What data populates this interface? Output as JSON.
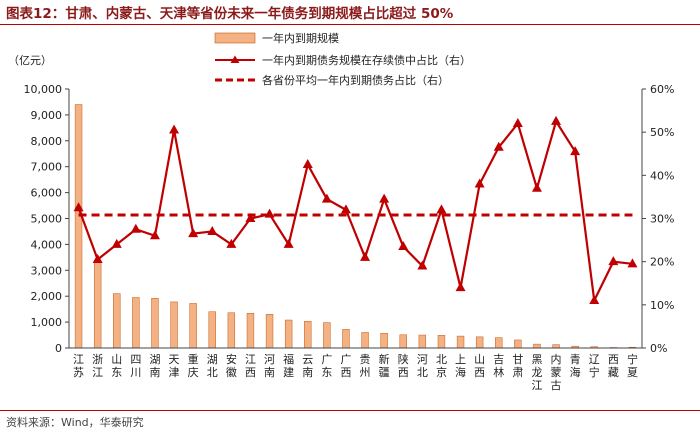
{
  "figure": {
    "title": "图表12：甘肃、内蒙古、天津等省份未来一年债务到期规模占比超过 50%",
    "source": "资料来源：Wind，华泰研究"
  },
  "colors": {
    "bar": "#f4b183",
    "bar_edge": "#c55a11",
    "line": "#c00000",
    "title": "#8b1a1a",
    "rule": "#c00000"
  },
  "chart_data": {
    "type": "bar",
    "categories": [
      "江苏",
      "浙江",
      "山东",
      "四川",
      "湖南",
      "天津",
      "重庆",
      "湖北",
      "安徽",
      "江西",
      "河南",
      "福建",
      "云南",
      "广东",
      "广西",
      "贵州",
      "新疆",
      "陕西",
      "河北",
      "北京",
      "上海",
      "山西",
      "吉林",
      "甘肃",
      "黑龙江",
      "内蒙古",
      "青海",
      "辽宁",
      "西藏",
      "宁夏"
    ],
    "series": [
      {
        "name": "一年内到期规模",
        "type": "bar",
        "axis": "left",
        "values": [
          9400,
          3300,
          2100,
          1950,
          1920,
          1780,
          1720,
          1400,
          1360,
          1340,
          1300,
          1080,
          1030,
          980,
          720,
          600,
          570,
          510,
          500,
          490,
          460,
          430,
          400,
          310,
          150,
          130,
          70,
          50,
          20,
          30
        ]
      },
      {
        "name": "一年内到期债务规模在存续债中占比（右）",
        "type": "line",
        "axis": "right",
        "values": [
          32.5,
          20.5,
          24,
          27.5,
          26,
          50.5,
          26.5,
          27,
          24,
          30,
          31,
          24,
          42.5,
          34.5,
          32,
          21,
          34.5,
          23.5,
          19,
          32,
          14,
          38,
          46.5,
          52,
          37,
          52.5,
          45.5,
          11,
          20,
          19.5
        ]
      },
      {
        "name": "各省份平均一年内到期债务占比（右）",
        "type": "reference-line",
        "axis": "right",
        "value": 30.8
      }
    ],
    "left_axis": {
      "unit": "（亿元）",
      "ylim": [
        0,
        10000
      ],
      "ticks": [
        0,
        1000,
        2000,
        3000,
        4000,
        5000,
        6000,
        7000,
        8000,
        9000,
        10000
      ],
      "tick_labels": [
        "0",
        "1,000",
        "2,000",
        "3,000",
        "4,000",
        "5,000",
        "6,000",
        "7,000",
        "8,000",
        "9,000",
        "10,000"
      ]
    },
    "right_axis": {
      "ylim": [
        0,
        60
      ],
      "ticks": [
        0,
        10,
        20,
        30,
        40,
        50,
        60
      ],
      "tick_labels": [
        "0%",
        "10%",
        "20%",
        "30%",
        "40%",
        "50%",
        "60%"
      ]
    },
    "legend": "top-center",
    "grid": false
  }
}
